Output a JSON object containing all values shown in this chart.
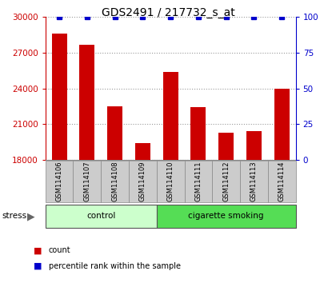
{
  "title": "GDS2491 / 217732_s_at",
  "samples": [
    "GSM114106",
    "GSM114107",
    "GSM114108",
    "GSM114109",
    "GSM114110",
    "GSM114111",
    "GSM114112",
    "GSM114113",
    "GSM114114"
  ],
  "counts": [
    28600,
    27700,
    22500,
    19400,
    25400,
    22400,
    20300,
    20400,
    24000
  ],
  "percentile_ranks": [
    100,
    100,
    100,
    100,
    100,
    100,
    100,
    100,
    100
  ],
  "groups": [
    {
      "label": "control",
      "indices": [
        0,
        1,
        2,
        3
      ],
      "color": "#ccffcc"
    },
    {
      "label": "cigarette smoking",
      "indices": [
        4,
        5,
        6,
        7,
        8
      ],
      "color": "#55dd55"
    }
  ],
  "factor_label": "stress",
  "bar_color": "#cc0000",
  "percentile_color": "#0000cc",
  "ylim_left": [
    18000,
    30000
  ],
  "ylim_right": [
    0,
    100
  ],
  "yticks_left": [
    18000,
    21000,
    24000,
    27000,
    30000
  ],
  "yticks_right": [
    0,
    25,
    50,
    75,
    100
  ],
  "grid_color": "#999999",
  "background_color": "#ffffff",
  "title_fontsize": 10,
  "tick_fontsize": 7.5,
  "label_fontsize": 8
}
